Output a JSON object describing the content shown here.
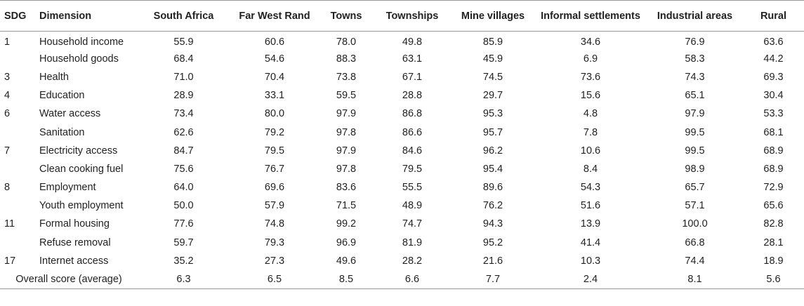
{
  "headers": [
    "SDG",
    "Dimension",
    "South Africa",
    "Far West Rand",
    "Towns",
    "Townships",
    "Mine villages",
    "Informal settlements",
    "Industrial areas",
    "Rural"
  ],
  "rows": [
    {
      "sdg": "1",
      "dimension": "Household income",
      "values": [
        "55.9",
        "60.6",
        "78.0",
        "49.8",
        "85.9",
        "34.6",
        "76.9",
        "63.6"
      ]
    },
    {
      "sdg": "",
      "dimension": "Household goods",
      "values": [
        "68.4",
        "54.6",
        "88.3",
        "63.1",
        "45.9",
        "6.9",
        "58.3",
        "44.2"
      ]
    },
    {
      "sdg": "3",
      "dimension": "Health",
      "values": [
        "71.0",
        "70.4",
        "73.8",
        "67.1",
        "74.5",
        "73.6",
        "74.3",
        "69.3"
      ]
    },
    {
      "sdg": "4",
      "dimension": "Education",
      "values": [
        "28.9",
        "33.1",
        "59.5",
        "28.8",
        "29.7",
        "15.6",
        "65.1",
        "30.4"
      ]
    },
    {
      "sdg": "6",
      "dimension": "Water access",
      "values": [
        "73.4",
        "80.0",
        "97.9",
        "86.8",
        "95.3",
        "4.8",
        "97.9",
        "53.3"
      ]
    },
    {
      "sdg": "",
      "dimension": "Sanitation",
      "values": [
        "62.6",
        "79.2",
        "97.8",
        "86.6",
        "95.7",
        "7.8",
        "99.5",
        "68.1"
      ]
    },
    {
      "sdg": "7",
      "dimension": "Electricity access",
      "values": [
        "84.7",
        "79.5",
        "97.9",
        "84.6",
        "96.2",
        "10.6",
        "99.5",
        "68.9"
      ]
    },
    {
      "sdg": "",
      "dimension": "Clean cooking fuel",
      "values": [
        "75.6",
        "76.7",
        "97.8",
        "79.5",
        "95.4",
        "8.4",
        "98.9",
        "68.9"
      ]
    },
    {
      "sdg": "8",
      "dimension": "Employment",
      "values": [
        "64.0",
        "69.6",
        "83.6",
        "55.5",
        "89.6",
        "54.3",
        "65.7",
        "72.9"
      ]
    },
    {
      "sdg": "",
      "dimension": "Youth employment",
      "values": [
        "50.0",
        "57.9",
        "71.5",
        "48.9",
        "76.2",
        "51.6",
        "57.1",
        "65.6"
      ]
    },
    {
      "sdg": "11",
      "dimension": "Formal housing",
      "values": [
        "77.6",
        "74.8",
        "99.2",
        "74.7",
        "94.3",
        "13.9",
        "100.0",
        "82.8"
      ]
    },
    {
      "sdg": "",
      "dimension": "Refuse removal",
      "values": [
        "59.7",
        "79.3",
        "96.9",
        "81.9",
        "95.2",
        "41.4",
        "66.8",
        "28.1"
      ]
    },
    {
      "sdg": "17",
      "dimension": "Internet access",
      "values": [
        "35.2",
        "27.3",
        "49.6",
        "28.2",
        "21.6",
        "10.3",
        "74.4",
        "18.9"
      ]
    }
  ],
  "overall": {
    "label": "Overall score (average)",
    "values": [
      "6.3",
      "6.5",
      "8.5",
      "6.6",
      "7.7",
      "2.4",
      "8.1",
      "5.6"
    ]
  }
}
